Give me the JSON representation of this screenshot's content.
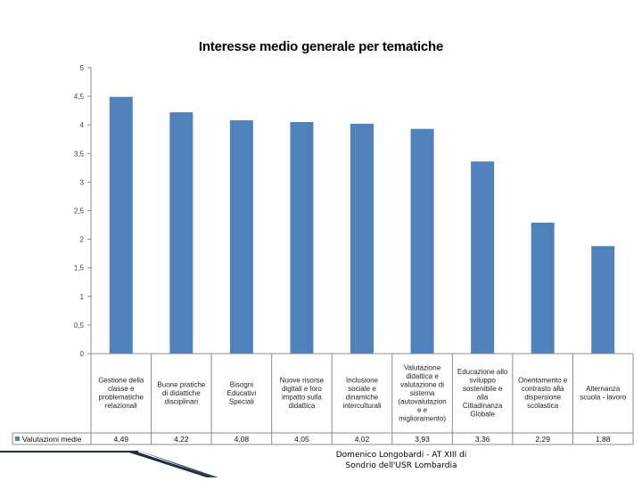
{
  "chart_data": {
    "type": "bar",
    "title": "Interesse medio generale per tematiche",
    "xlabel": "",
    "ylabel": "",
    "ylim": [
      0,
      5
    ],
    "yticks": [
      "0",
      "0,5",
      "1",
      "1,5",
      "2",
      "2,5",
      "3",
      "3,5",
      "4",
      "4,5",
      "5"
    ],
    "categories": [
      [
        "Gestione della",
        "classe e",
        "problematiche",
        "relazionali"
      ],
      [
        "Buone pratiche",
        "di didattiche",
        "disciplinari"
      ],
      [
        "Bisogni",
        "Educativi",
        "Speciali"
      ],
      [
        "Nuove risorse",
        "digitali e loro",
        "impatto sulla",
        "didattica"
      ],
      [
        "Inclusione",
        "sociale e",
        "dinamiche",
        "interculturali"
      ],
      [
        "Valutazione",
        "didattica e",
        "valutazione di",
        "sistema",
        "(autovalutazion",
        "e e",
        "miglioramento)"
      ],
      [
        "Educazione allo",
        "sviluppo",
        "sostenibile e",
        "alla",
        "Cittadinanza",
        "Globale"
      ],
      [
        "Orientamento e",
        "contrasto alla",
        "dispersione",
        "scolastica"
      ],
      [
        "Alternanza",
        "scuola - lavoro"
      ]
    ],
    "series": [
      {
        "name": "Valutazioni medie",
        "values": [
          4.49,
          4.22,
          4.08,
          4.05,
          4.02,
          3.93,
          3.36,
          2.29,
          1.88
        ],
        "labels": [
          "4,49",
          "4,22",
          "4,08",
          "4,05",
          "4,02",
          "3,93",
          "3,36",
          "2,29",
          "1,88"
        ],
        "color": "#4f81bd"
      }
    ],
    "grid": false,
    "legend": "left of data table"
  },
  "footer": {
    "line1": "Domenico Longobardi - AT XIII di",
    "line2": "Sondrio dell'USR Lombardia"
  },
  "colors": {
    "bar": "#4f81bd",
    "axis": "#8c8c8c",
    "deco_dark": "#1f2f3f"
  }
}
